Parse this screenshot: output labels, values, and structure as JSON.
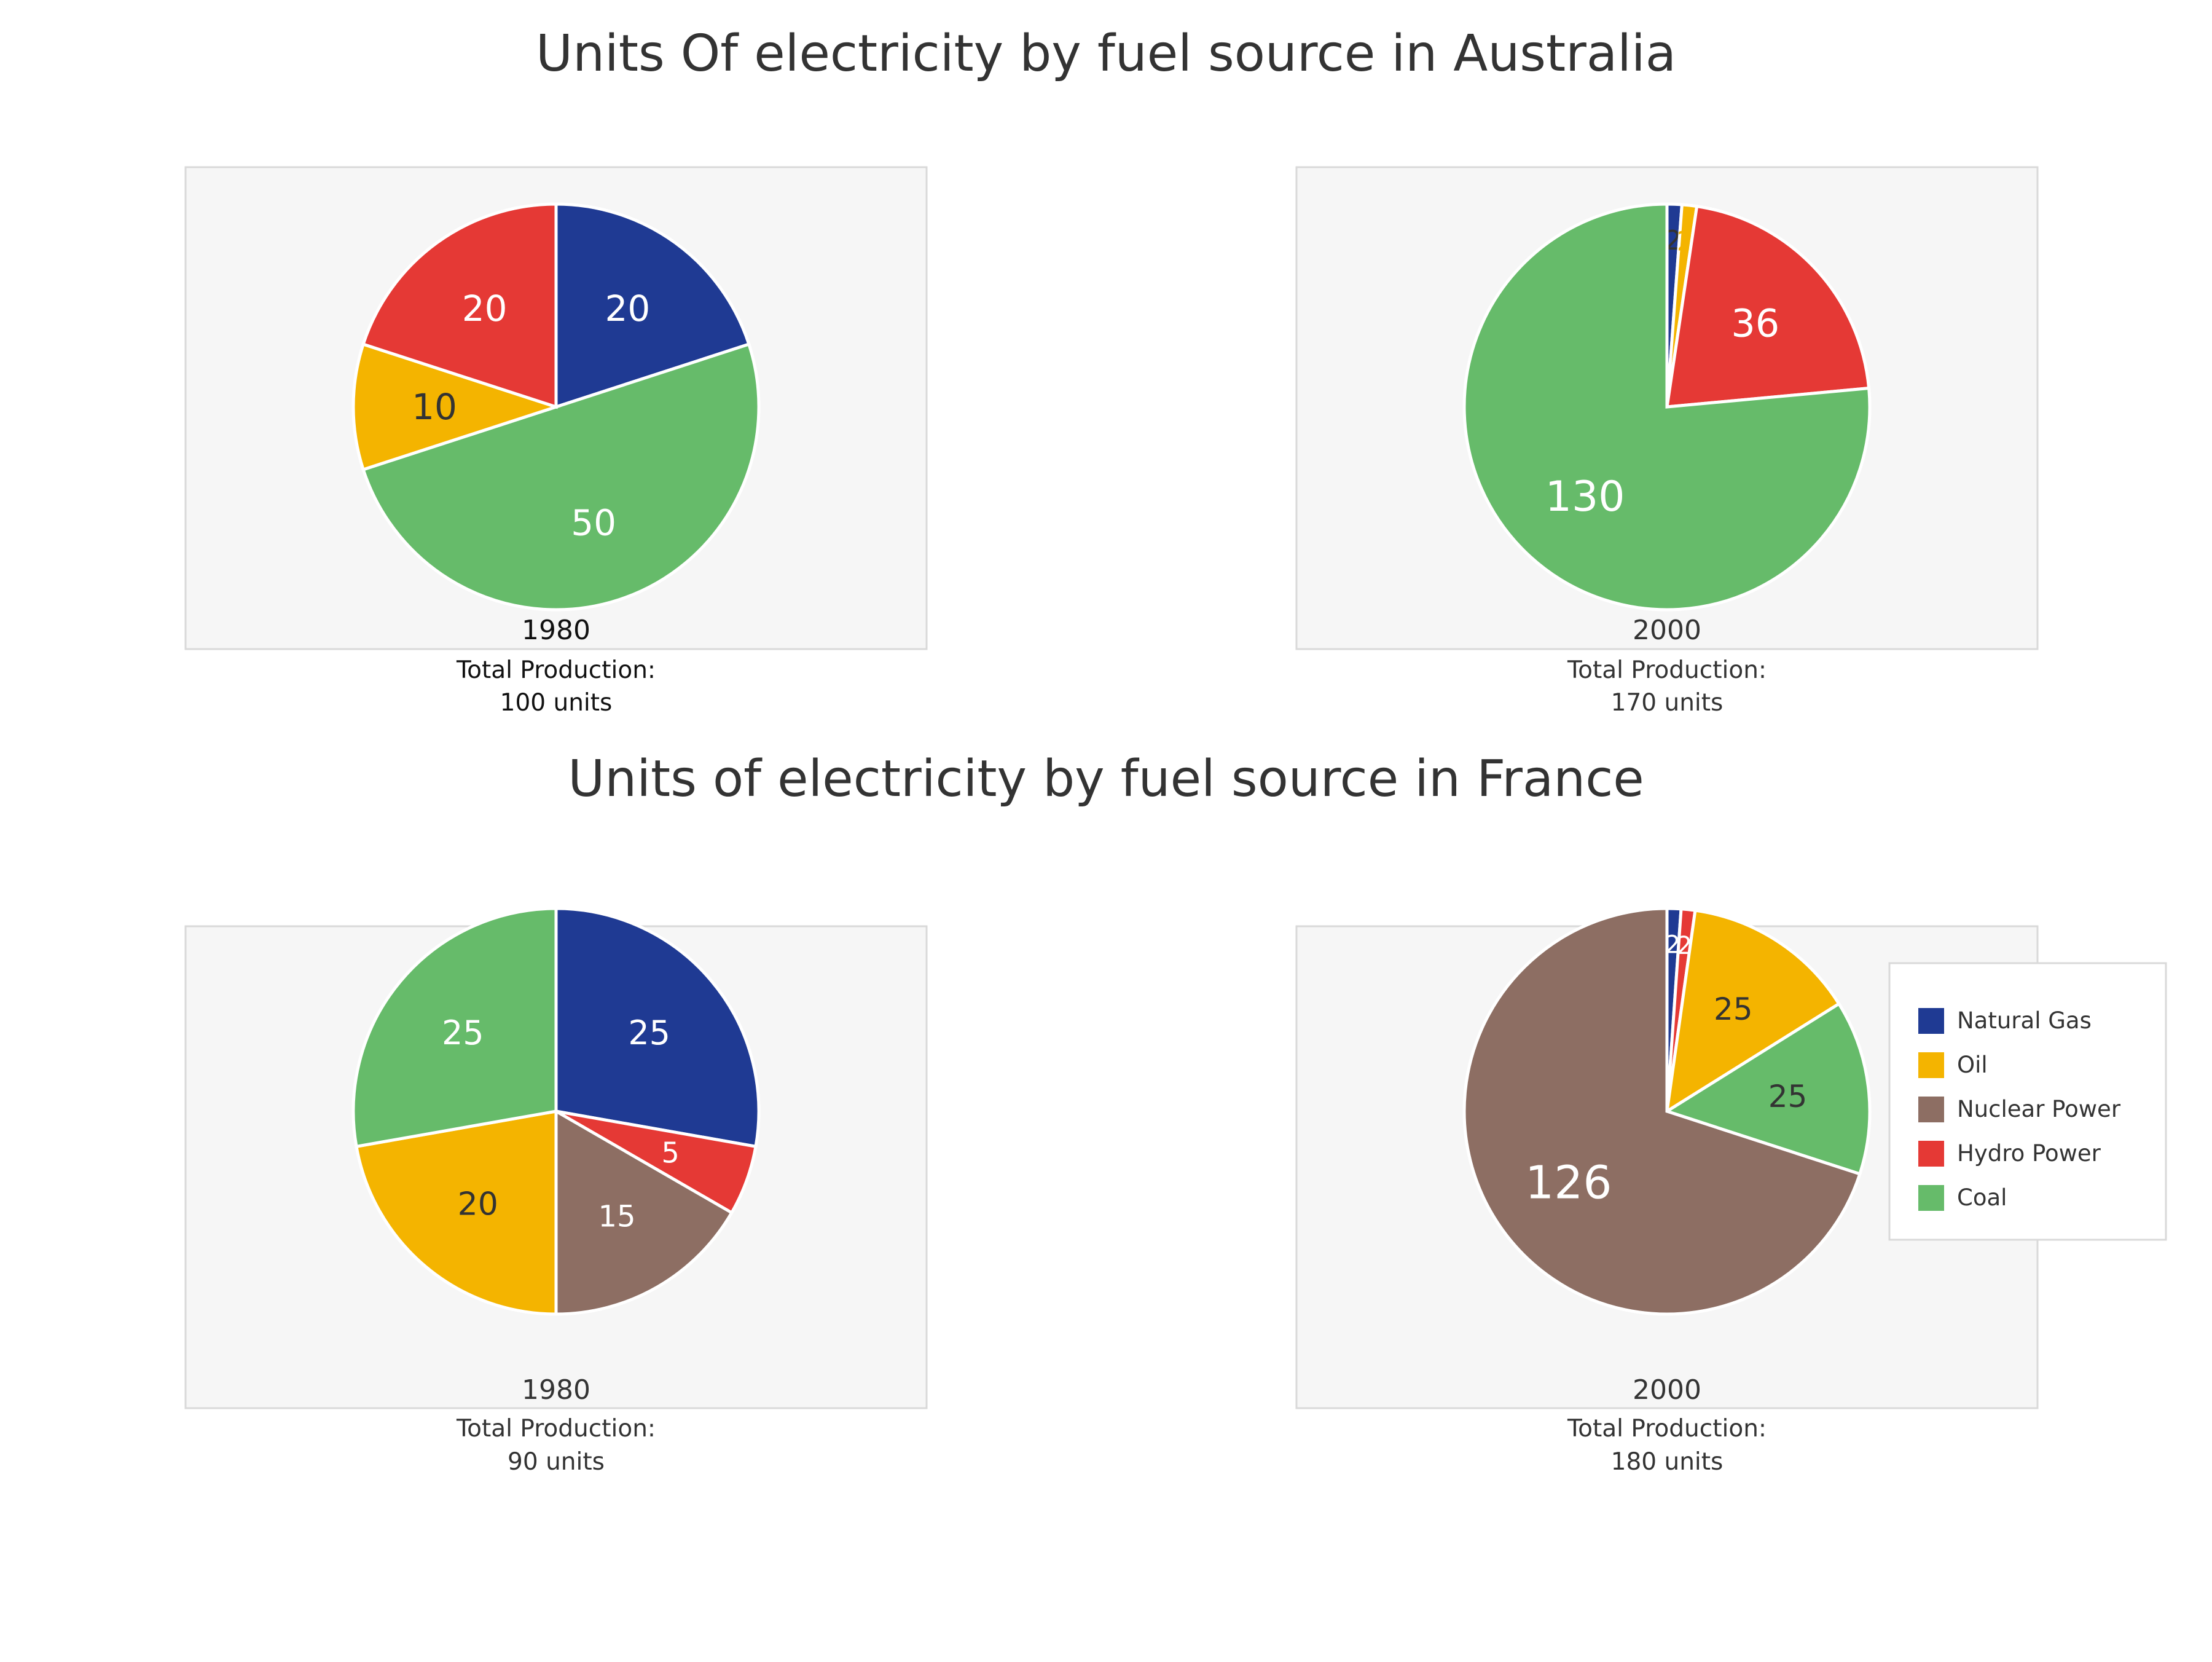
{
  "fuel_colors": {
    "Natural Gas": "#1f3a93",
    "Oil": "#f4b400",
    "Nuclear Power": "#8d6e63",
    "Hydro Power": "#e53935",
    "Coal": "#66bb6a"
  },
  "sections": [
    {
      "title": "Units Of electricity by fuel source in Australia"
    },
    {
      "title": "Units of electricity by fuel source in France"
    }
  ],
  "legend": {
    "items": [
      "Natural Gas",
      "Oil",
      "Nuclear Power",
      "Hydro Power",
      "Coal"
    ]
  },
  "chart_data": [
    {
      "type": "pie",
      "title": "Units Of electricity by fuel source in Australia",
      "year_label": "1980",
      "total_label": "Total Production:",
      "total_value": "100 units",
      "slices": [
        {
          "label": "Natural Gas",
          "value": 20,
          "value_label": "20"
        },
        {
          "label": "Coal",
          "value": 50,
          "value_label": "50"
        },
        {
          "label": "Oil",
          "value": 10,
          "value_label": "10"
        },
        {
          "label": "Hydro Power",
          "value": 20,
          "value_label": "20"
        }
      ]
    },
    {
      "type": "pie",
      "title": "Units Of electricity by fuel source in Australia",
      "year_label": "2000",
      "total_label": "Total Production:",
      "total_value": "170 units",
      "slices": [
        {
          "label": "Natural Gas",
          "value": 2,
          "value_label": "2"
        },
        {
          "label": "Oil",
          "value": 2,
          "value_label": "2"
        },
        {
          "label": "Hydro Power",
          "value": 36,
          "value_label": "36"
        },
        {
          "label": "Coal",
          "value": 130,
          "value_label": "130"
        }
      ]
    },
    {
      "type": "pie",
      "title": "Units of electricity by fuel source in France",
      "year_label": "1980",
      "total_label": "Total Production:",
      "total_value": "90 units",
      "slices": [
        {
          "label": "Natural Gas",
          "value": 25,
          "value_label": "25"
        },
        {
          "label": "Hydro Power",
          "value": 5,
          "value_label": "5"
        },
        {
          "label": "Nuclear Power",
          "value": 15,
          "value_label": "15"
        },
        {
          "label": "Oil",
          "value": 20,
          "value_label": "20"
        },
        {
          "label": "Coal",
          "value": 25,
          "value_label": "25"
        }
      ]
    },
    {
      "type": "pie",
      "title": "Units of electricity by fuel source in France",
      "year_label": "2000",
      "total_label": "Total Production:",
      "total_value": "180 units",
      "slices": [
        {
          "label": "Natural Gas",
          "value": 2,
          "value_label": "2"
        },
        {
          "label": "Hydro Power",
          "value": 2,
          "value_label": "2"
        },
        {
          "label": "Oil",
          "value": 25,
          "value_label": "25"
        },
        {
          "label": "Coal",
          "value": 25,
          "value_label": "25"
        },
        {
          "label": "Nuclear Power",
          "value": 126,
          "value_label": "126"
        }
      ]
    }
  ]
}
